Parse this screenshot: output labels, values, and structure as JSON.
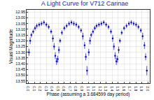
{
  "chart_data": {
    "type": "scatter",
    "title": "A Light Curve for V712 Carinae",
    "x_label": "Phase (assuming a 3.684599 day period)",
    "y_label": "Visual Magnitude",
    "color": "#0000ee",
    "marker": "circle",
    "grid": true,
    "x": [
      0.01,
      0.03,
      0.05,
      0.08,
      0.11,
      0.14,
      0.18,
      0.22,
      0.26,
      0.3,
      0.34,
      0.38,
      0.41,
      0.43,
      0.45,
      0.47,
      0.49,
      0.51,
      0.53,
      0.56,
      0.6,
      0.64,
      0.68,
      0.72,
      0.76,
      0.8,
      0.84,
      0.88,
      0.91,
      0.94,
      0.96,
      0.98,
      1.01,
      1.03,
      1.05,
      1.08,
      1.11,
      1.14,
      1.18,
      1.22,
      1.26,
      1.3,
      1.34,
      1.38,
      1.41,
      1.43,
      1.45,
      1.47,
      1.49,
      1.51,
      1.53,
      1.56,
      1.6,
      1.64,
      1.68,
      1.72,
      1.76,
      1.8,
      1.84,
      1.88,
      1.91,
      1.94,
      1.96,
      1.98
    ],
    "values": [
      13.3,
      13.2,
      13.15,
      13.12,
      13.09,
      13.07,
      13.06,
      13.05,
      13.04,
      13.06,
      13.08,
      13.12,
      13.18,
      13.25,
      13.33,
      13.38,
      13.36,
      13.28,
      13.2,
      13.13,
      13.09,
      13.07,
      13.05,
      13.04,
      13.05,
      13.06,
      13.08,
      13.11,
      13.16,
      13.24,
      13.34,
      13.46,
      13.3,
      13.2,
      13.15,
      13.12,
      13.09,
      13.07,
      13.06,
      13.05,
      13.04,
      13.06,
      13.08,
      13.12,
      13.18,
      13.25,
      13.33,
      13.38,
      13.36,
      13.28,
      13.2,
      13.13,
      13.09,
      13.07,
      13.05,
      13.04,
      13.05,
      13.06,
      13.08,
      13.11,
      13.16,
      13.24,
      13.34,
      13.46
    ],
    "y_errors": [
      0.03,
      0.03,
      0.02,
      0.02,
      0.02,
      0.02,
      0.02,
      0.02,
      0.02,
      0.02,
      0.02,
      0.02,
      0.03,
      0.03,
      0.03,
      0.03,
      0.03,
      0.03,
      0.02,
      0.02,
      0.02,
      0.02,
      0.02,
      0.02,
      0.02,
      0.02,
      0.02,
      0.02,
      0.03,
      0.03,
      0.03,
      0.04,
      0.03,
      0.03,
      0.02,
      0.02,
      0.02,
      0.02,
      0.02,
      0.02,
      0.02,
      0.02,
      0.02,
      0.02,
      0.03,
      0.03,
      0.03,
      0.03,
      0.03,
      0.03,
      0.02,
      0.02,
      0.02,
      0.02,
      0.02,
      0.02,
      0.02,
      0.02,
      0.02,
      0.02,
      0.03,
      0.03,
      0.03,
      0.04
    ],
    "xlim": [
      -0.03,
      2.03
    ],
    "ylim": [
      13.57,
      12.93
    ],
    "xticks": [
      {
        "value": 0,
        "label": "0.0"
      },
      0.1,
      0.2,
      0.3,
      0.4,
      0.5,
      0.6,
      0.7,
      0.8,
      0.9,
      {
        "value": 1,
        "label": "1.0"
      },
      1.1,
      1.2,
      1.3,
      1.4,
      1.5,
      1.6,
      1.7,
      1.8,
      1.9,
      {
        "value": 2,
        "label": "2.0"
      }
    ],
    "yticks": [
      12.95,
      {
        "value": 13,
        "label": "13.00"
      },
      13.05,
      {
        "value": 13.1,
        "label": "13.10"
      },
      13.15,
      {
        "value": 13.2,
        "label": "13.20"
      },
      13.25,
      {
        "value": 13.3,
        "label": "13.30"
      },
      13.35,
      {
        "value": 13.4,
        "label": "13.40"
      },
      13.45,
      {
        "value": 13.5,
        "label": "13.50"
      },
      13.55
    ]
  }
}
